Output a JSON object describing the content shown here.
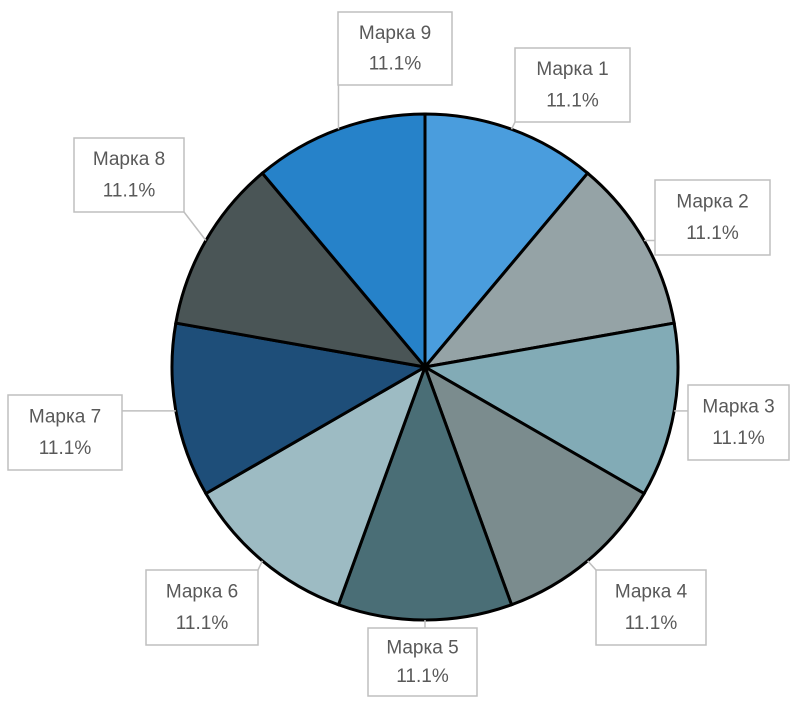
{
  "chart_data": {
    "type": "pie",
    "categories": [
      "Марка 1",
      "Марка 2",
      "Марка 3",
      "Марка 4",
      "Марка 5",
      "Марка 6",
      "Марка 7",
      "Марка 8",
      "Марка 9"
    ],
    "values": [
      11.1,
      11.1,
      11.1,
      11.1,
      11.1,
      11.1,
      11.1,
      11.1,
      11.1
    ],
    "value_labels": [
      "11.1%",
      "11.1%",
      "11.1%",
      "11.1%",
      "11.1%",
      "11.1%",
      "11.1%",
      "11.1%",
      "11.1%"
    ],
    "colors": [
      "#4a9ddd",
      "#95a3a6",
      "#82abb6",
      "#7b8c8e",
      "#4a6e76",
      "#9dbbc3",
      "#1e4e79",
      "#4a5556",
      "#2682c9"
    ]
  }
}
